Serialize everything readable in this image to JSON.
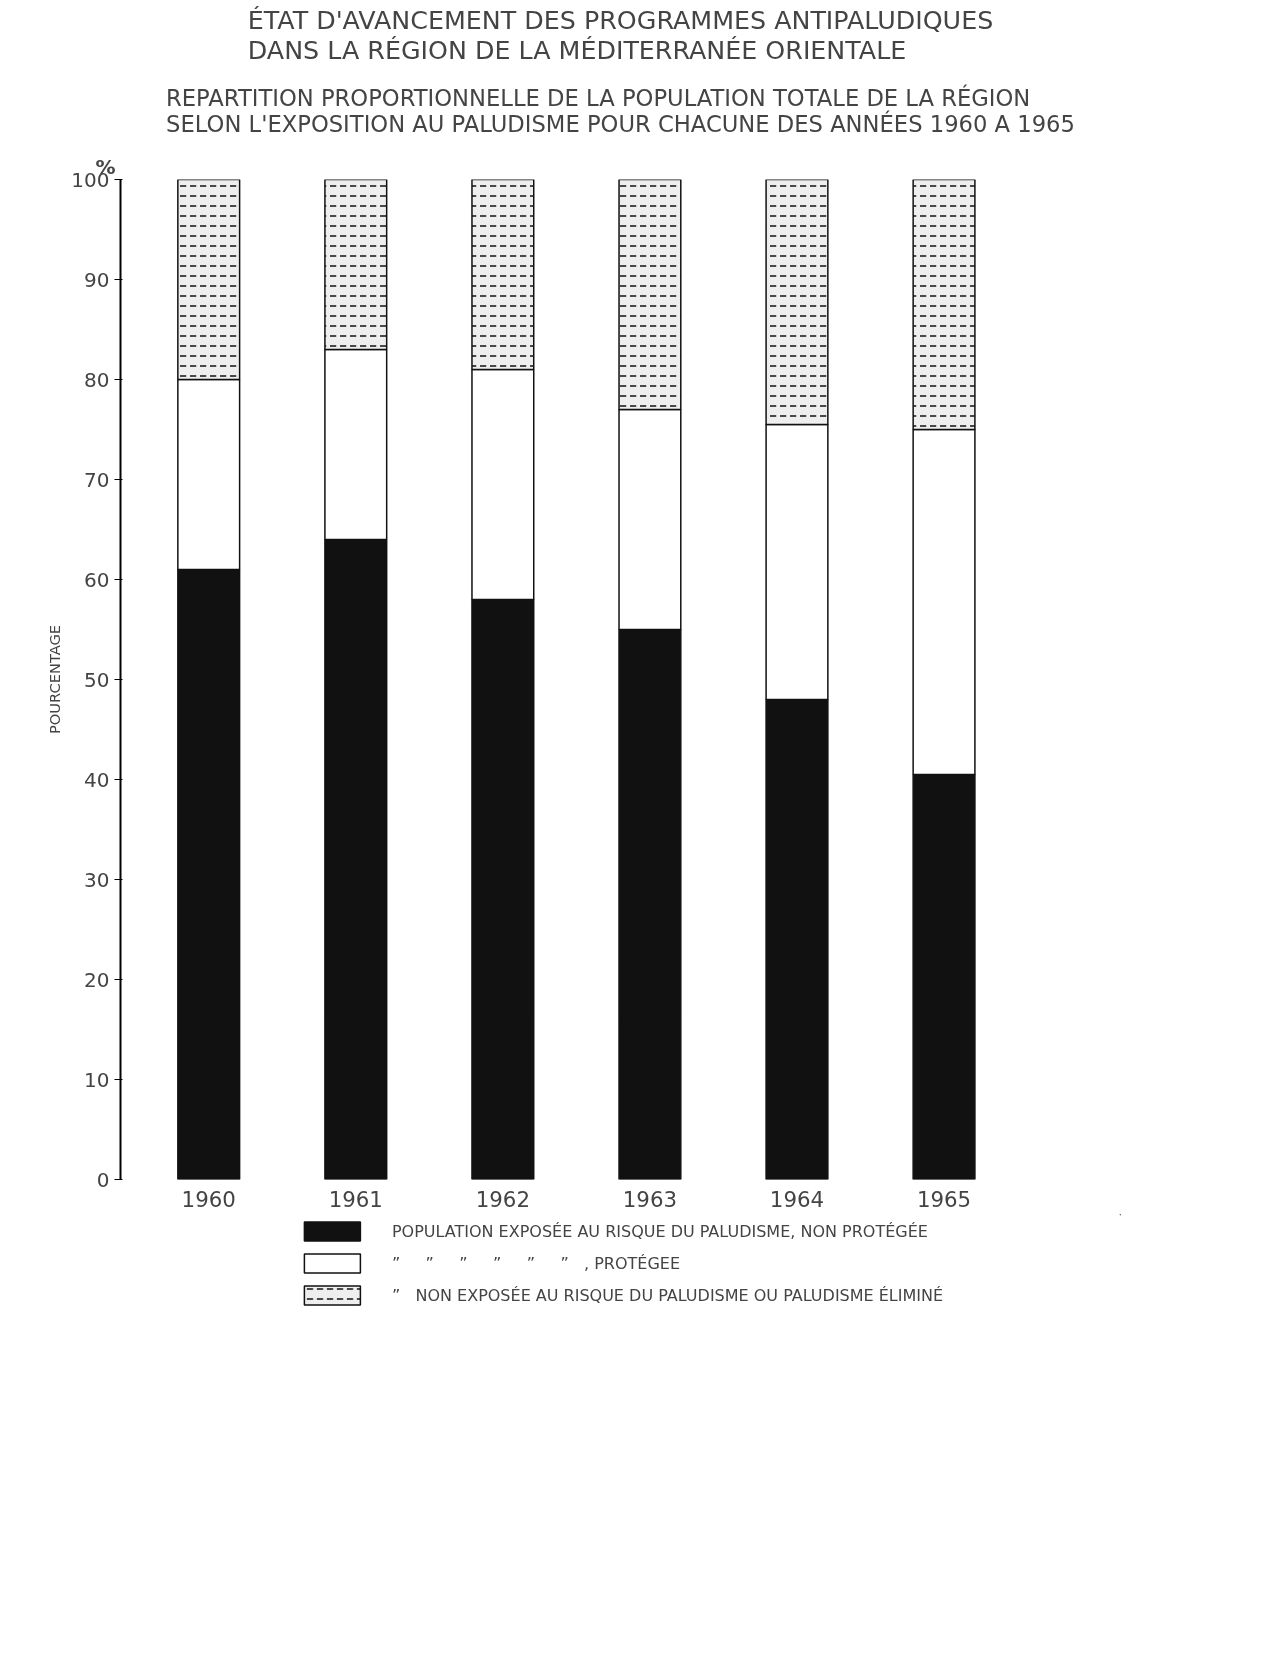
{
  "chart_data": {
    "type": "bar",
    "stacked": true,
    "title": "ÉTAT D'AVANCEMENT DES PROGRAMMES ANTIPALUDIQUES\nDANS LA RÉGION DE LA MÉDITERRANÉE ORIENTALE",
    "subtitle": "REPARTITION PROPORTIONNELLE DE LA POPULATION TOTALE DE LA RÉGION\nSELON L'EXPOSITION AU PALUDISME POUR CHACUNE DES ANNÉES 1960 A 1965",
    "ylabel": "POURCENTAGE",
    "annotations": [
      "%"
    ],
    "categories": [
      "1960",
      "1961",
      "1962",
      "1963",
      "1964",
      "1965"
    ],
    "ylim": [
      0,
      100
    ],
    "yticks": [
      0,
      10,
      20,
      30,
      40,
      50,
      60,
      70,
      80,
      90,
      100
    ],
    "grid": false,
    "legend": "bottom",
    "series": [
      {
        "name": "POPULATION EXPOSÉE AU RISQUE DU PALUDISME, NON PROTÉGÉE",
        "color": "#111111",
        "values": [
          61,
          64,
          58,
          55,
          48,
          40.5
        ]
      },
      {
        "name": "”     ”     ”     ”     ”     ”   , PROTÉGEE",
        "color": "#ffffff",
        "values": [
          19,
          19,
          23,
          22,
          27.5,
          34.5
        ]
      },
      {
        "name": "”   NON EXPOSÉE AU RISQUE DU PALUDISME OU PALUDISME ÉLIMINÉ",
        "color": "#eeeeee",
        "values": [
          20,
          17,
          19,
          23,
          24.5,
          25
        ]
      }
    ]
  }
}
